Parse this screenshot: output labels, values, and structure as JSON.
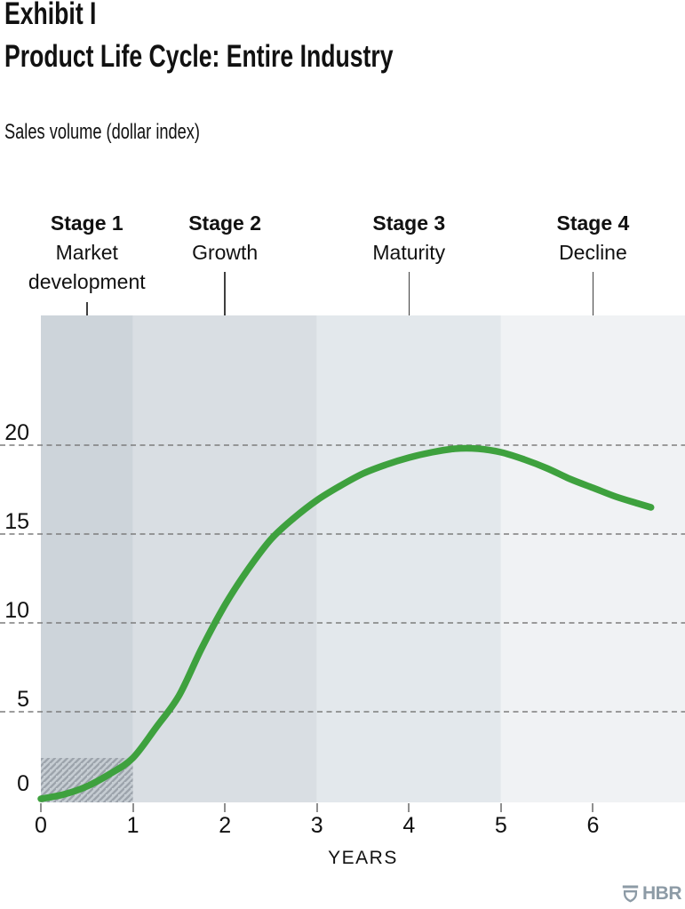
{
  "header": {
    "title_line1": "Exhibit I",
    "title_line2": "Product Life Cycle: Entire Industry",
    "subtitle": "Sales volume (dollar index)"
  },
  "footer": {
    "logo_text": "HBR"
  },
  "chart_data": {
    "type": "line",
    "title": "Product Life Cycle: Entire Industry",
    "ylabel": "Sales volume (dollar index)",
    "xlabel": "YEARS",
    "xlim": [
      0,
      7
    ],
    "ylim": [
      0,
      27.3
    ],
    "x_ticks": [
      0,
      1,
      2,
      3,
      4,
      5,
      6
    ],
    "y_ticks": [
      0,
      5,
      10,
      15,
      20
    ],
    "y_gridlines": [
      5,
      10,
      15,
      20
    ],
    "grid_style": "dashed-horizontal",
    "legend": "none",
    "stages": [
      {
        "label": "Stage 1",
        "sublabel": "Market development",
        "from_year": 0,
        "to_year": 1,
        "band_color": "#cdd4da"
      },
      {
        "label": "Stage 2",
        "sublabel": "Growth",
        "from_year": 1,
        "to_year": 3,
        "band_color": "#d9dee3"
      },
      {
        "label": "Stage 3",
        "sublabel": "Maturity",
        "from_year": 3,
        "to_year": 5,
        "band_color": "#e3e8ec"
      },
      {
        "label": "Stage 4",
        "sublabel": "Decline",
        "from_year": 5,
        "to_year": 7,
        "band_color": "#f0f2f4"
      }
    ],
    "hatch_region": {
      "from_year": 0,
      "to_year": 1,
      "from_value": 0,
      "to_value": 2.4,
      "style": "diagonal-hatch"
    },
    "series": [
      {
        "name": "Industry sales volume",
        "color": "#3ea13e",
        "points": [
          [
            0,
            0.1
          ],
          [
            0.25,
            0.35
          ],
          [
            0.5,
            0.8
          ],
          [
            0.75,
            1.5
          ],
          [
            1,
            2.4
          ],
          [
            1.25,
            4.1
          ],
          [
            1.5,
            5.9
          ],
          [
            1.75,
            8.6
          ],
          [
            2,
            11.0
          ],
          [
            2.25,
            13.0
          ],
          [
            2.5,
            14.7
          ],
          [
            2.75,
            15.9
          ],
          [
            3,
            16.9
          ],
          [
            3.25,
            17.7
          ],
          [
            3.5,
            18.4
          ],
          [
            3.75,
            18.9
          ],
          [
            4,
            19.3
          ],
          [
            4.25,
            19.6
          ],
          [
            4.5,
            19.8
          ],
          [
            4.75,
            19.8
          ],
          [
            5,
            19.6
          ],
          [
            5.25,
            19.2
          ],
          [
            5.5,
            18.7
          ],
          [
            5.75,
            18.1
          ],
          [
            6,
            17.6
          ],
          [
            6.25,
            17.1
          ],
          [
            6.5,
            16.7
          ],
          [
            6.63,
            16.5
          ]
        ]
      }
    ]
  },
  "colors": {
    "background": "#ffffff",
    "text": "#111111",
    "grid": "#7d7d7d",
    "tick": "#8f8f8f",
    "connector": "#3f3f3f",
    "hatch_line": "#9da4ac",
    "curve": "#3ea13e",
    "logo": "#8d9ba6"
  }
}
